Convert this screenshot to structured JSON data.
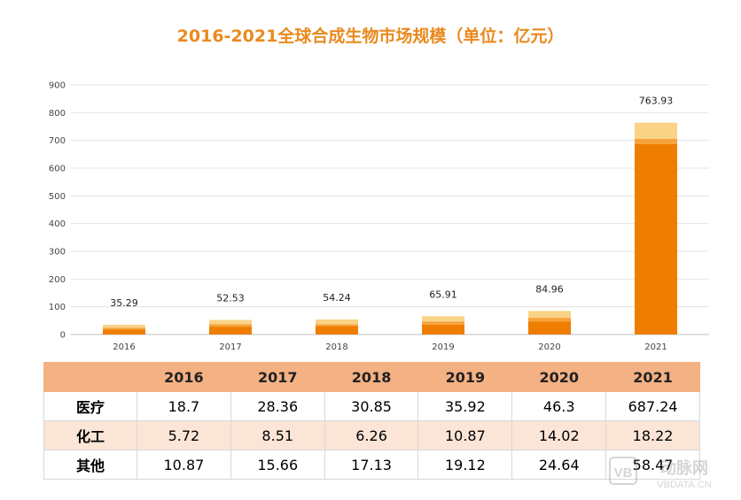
{
  "title": "2016-2021全球合成生物市场规模（单位：亿元）",
  "colors": {
    "medical": "#EF7D00",
    "chemical": "#F6A33A",
    "other": "#FAD387",
    "title": "#E98A1E",
    "table_header": "#F4B183",
    "table_alt": "#FBE5D6"
  },
  "chart_data": {
    "type": "bar",
    "stacked": true,
    "title": "2016-2021全球合成生物市场规模（单位：亿元）",
    "categories": [
      "2016",
      "2017",
      "2018",
      "2019",
      "2020",
      "2021"
    ],
    "series": [
      {
        "name": "医疗",
        "values": [
          18.7,
          28.36,
          30.85,
          35.92,
          46.3,
          687.24
        ]
      },
      {
        "name": "化工",
        "values": [
          5.72,
          8.51,
          6.26,
          10.87,
          14.02,
          18.22
        ]
      },
      {
        "name": "其他",
        "values": [
          10.87,
          15.66,
          17.13,
          19.12,
          24.64,
          58.47
        ]
      }
    ],
    "totals": [
      "35.29",
      "52.53",
      "54.24",
      "65.91",
      "84.96",
      "763.93"
    ],
    "yticks": [
      "0",
      "100",
      "200",
      "300",
      "400",
      "500",
      "600",
      "700",
      "800",
      "900"
    ],
    "ylim": [
      0,
      900
    ],
    "grid": true
  },
  "table": {
    "header": [
      "",
      "2016",
      "2017",
      "2018",
      "2019",
      "2020",
      "2021"
    ],
    "rows": [
      {
        "label": "医疗",
        "values": [
          "18.7",
          "28.36",
          "30.85",
          "35.92",
          "46.3",
          "687.24"
        ]
      },
      {
        "label": "化工",
        "values": [
          "5.72",
          "8.51",
          "6.26",
          "10.87",
          "14.02",
          "18.22"
        ]
      },
      {
        "label": "其他",
        "values": [
          "10.87",
          "15.66",
          "17.13",
          "19.12",
          "24.64",
          "58.47"
        ]
      }
    ]
  },
  "watermark": {
    "logo": "VB",
    "name": "动脉网",
    "domain": "VBDATA.CN"
  }
}
